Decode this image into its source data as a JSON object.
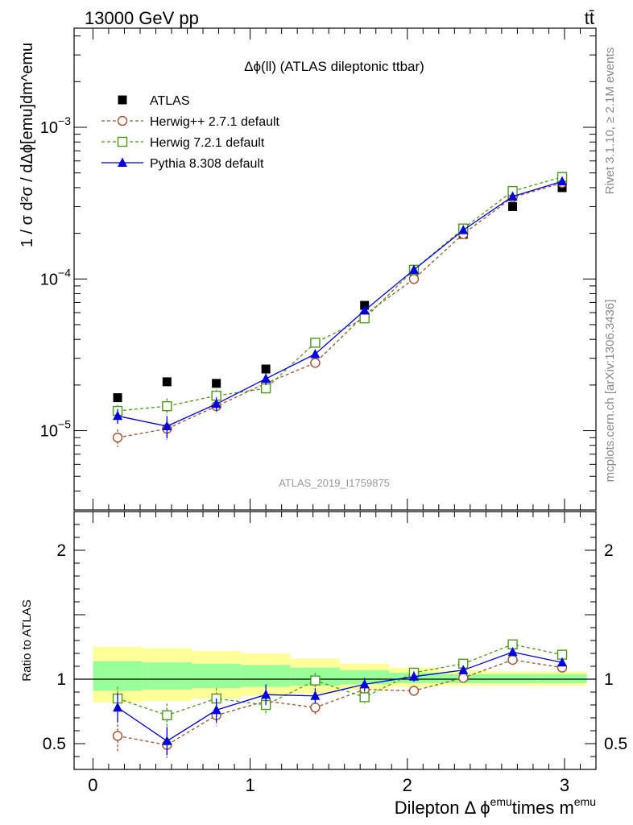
{
  "header": {
    "energy_label": "13000 GeV pp",
    "process_label": "tt̄"
  },
  "side_labels": {
    "rivet": "Rivet 3.1.10, ≥ 2.1M events",
    "source": "mcplots.cern.ch [arXiv:1306.3436]"
  },
  "chart_data": [
    {
      "type": "scatter",
      "panel": "main",
      "title": "Δϕ(ll) (ATLAS dileptonic ttbar)",
      "ylabel": "1 / σ  d²σ / dΔϕ[emu]dm^emu",
      "yscale": "log",
      "xlim": [
        -0.12,
        3.2
      ],
      "ylim": [
        3e-06,
        0.0045
      ],
      "y_ticks": [
        {
          "value": 1e-05,
          "mantissa": "10",
          "exp": "−5"
        },
        {
          "value": 0.0001,
          "mantissa": "10",
          "exp": "−4"
        },
        {
          "value": 0.001,
          "mantissa": "10",
          "exp": "−3"
        }
      ],
      "watermark": "ATLAS_2019_I1759875",
      "legend_position": "top-left",
      "x": [
        0.157,
        0.471,
        0.785,
        1.1,
        1.414,
        1.728,
        2.042,
        2.356,
        2.67,
        2.985
      ],
      "series": [
        {
          "name": "ATLAS",
          "color": "#000000",
          "marker": "square-filled",
          "values": [
            1.65e-05,
            2.1e-05,
            2.05e-05,
            2.55e-05,
            3.8e-05,
            6.7e-05,
            0.000113,
            0.000197,
            0.0003,
            0.0004
          ]
        },
        {
          "name": "Herwig++ 2.7.1 default",
          "color": "#a0522d",
          "marker": "circle-open",
          "dash": "4,3",
          "values": [
            9e-06,
            1.03e-05,
            1.45e-05,
            2.05e-05,
            2.8e-05,
            5.8e-05,
            0.0001,
            0.000198,
            0.000345,
            0.00043
          ],
          "errors": [
            1.2e-06,
            1.6e-06,
            1.4e-06,
            1.6e-06,
            1.5e-06,
            2.5e-06,
            4e-06,
            6e-06,
            1e-05,
            1.2e-05
          ]
        },
        {
          "name": "Herwig 7.2.1 default",
          "color": "#4a9a1a",
          "marker": "square-open",
          "dash": "4,3",
          "values": [
            1.35e-05,
            1.45e-05,
            1.7e-05,
            1.9e-05,
            3.8e-05,
            5.5e-05,
            0.000115,
            0.000215,
            0.00038,
            0.00047
          ],
          "errors": [
            1.2e-06,
            1.8e-06,
            1.6e-06,
            1.8e-06,
            1.8e-06,
            3e-06,
            4e-06,
            6e-06,
            1e-05,
            1.2e-05
          ]
        },
        {
          "name": "Pythia 8.308 default",
          "color": "#0000dd",
          "marker": "triangle-filled",
          "values": [
            1.25e-05,
            1.07e-05,
            1.5e-05,
            2.2e-05,
            3.2e-05,
            6.2e-05,
            0.000115,
            0.00021,
            0.00035,
            0.00044
          ],
          "errors": [
            1.4e-06,
            1.8e-06,
            1.6e-06,
            2e-06,
            2e-06,
            3e-06,
            4e-06,
            6e-06,
            1e-05,
            1.2e-05
          ]
        }
      ]
    },
    {
      "type": "scatter",
      "panel": "ratio",
      "ylabel": "Ratio to ATLAS",
      "xlabel_main": "Dilepton Δ ϕ",
      "xlabel_sup1": "emu",
      "xlabel_mid": "times m",
      "xlabel_sup2": "emu",
      "xlim": [
        -0.12,
        3.2
      ],
      "ylim": [
        0.3,
        2.3
      ],
      "x_ticks": [
        0,
        1,
        2,
        3
      ],
      "y_ticks_left": [
        0.5,
        1,
        2
      ],
      "y_ticks_right": [
        0.5,
        1,
        2
      ],
      "reference_line": 1,
      "bands": {
        "edges": [
          0.0,
          0.314,
          0.628,
          0.942,
          1.257,
          1.571,
          1.885,
          2.199,
          2.513,
          2.827,
          3.142
        ],
        "yellow_lo": [
          0.82,
          0.83,
          0.85,
          0.87,
          0.89,
          0.92,
          0.94,
          0.95,
          0.95,
          0.95
        ],
        "yellow_hi": [
          1.25,
          1.24,
          1.22,
          1.2,
          1.16,
          1.12,
          1.09,
          1.07,
          1.06,
          1.06
        ],
        "green_lo": [
          0.91,
          0.92,
          0.93,
          0.94,
          0.95,
          0.96,
          0.97,
          0.97,
          0.97,
          0.97
        ],
        "green_hi": [
          1.14,
          1.13,
          1.12,
          1.11,
          1.09,
          1.07,
          1.05,
          1.04,
          1.04,
          1.04
        ],
        "yellow_color": "#ffff99",
        "green_color": "#99ff99"
      },
      "x": [
        0.157,
        0.471,
        0.785,
        1.1,
        1.414,
        1.728,
        2.042,
        2.356,
        2.67,
        2.985
      ],
      "series": [
        {
          "name": "Herwig++ 2.7.1 default",
          "color": "#a0522d",
          "marker": "circle-open",
          "dash": "4,3",
          "values": [
            0.56,
            0.49,
            0.72,
            0.83,
            0.78,
            0.92,
            0.91,
            1.01,
            1.15,
            1.09
          ],
          "errors": [
            0.12,
            0.1,
            0.08,
            0.07,
            0.06,
            0.05,
            0.04,
            0.03,
            0.03,
            0.03
          ]
        },
        {
          "name": "Herwig 7.2.1 default",
          "color": "#4a9a1a",
          "marker": "square-open",
          "dash": "4,3",
          "values": [
            0.85,
            0.72,
            0.85,
            0.8,
            0.99,
            0.86,
            1.05,
            1.12,
            1.27,
            1.19
          ],
          "errors": [
            0.09,
            0.09,
            0.08,
            0.08,
            0.06,
            0.05,
            0.04,
            0.03,
            0.03,
            0.03
          ]
        },
        {
          "name": "Pythia 8.308 default",
          "color": "#0000dd",
          "marker": "triangle-filled",
          "values": [
            0.78,
            0.52,
            0.76,
            0.88,
            0.87,
            0.96,
            1.02,
            1.07,
            1.21,
            1.13
          ],
          "errors": [
            0.11,
            0.11,
            0.09,
            0.08,
            0.06,
            0.05,
            0.04,
            0.03,
            0.03,
            0.03
          ]
        }
      ]
    }
  ]
}
